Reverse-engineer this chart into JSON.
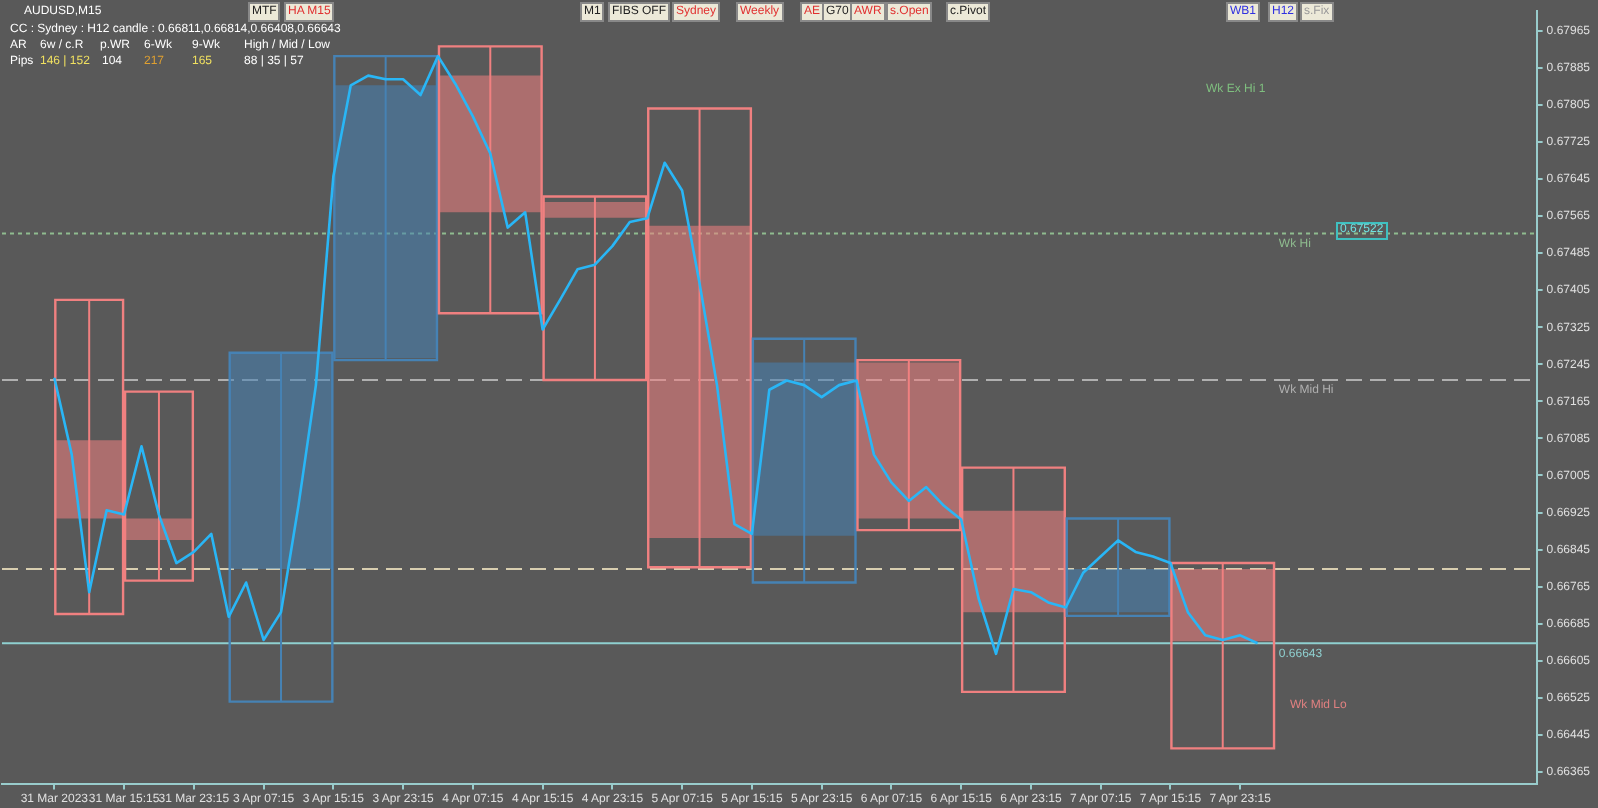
{
  "chart_data": {
    "type": "candlestick",
    "title": "AUDUSD,M15",
    "subtitle": "CC : Sydney : H12 candle : 0.66811,0.66814,0.66408,0.66643",
    "categories": [
      null,
      null,
      null,
      "31 Mar 2023",
      null,
      null,
      null,
      "31 Mar 15:15",
      null,
      null,
      null,
      "31 Mar 23:15",
      null,
      null,
      null,
      "3 Apr 07:15",
      null,
      null,
      null,
      "3 Apr 15:15",
      null,
      null,
      null,
      "3 Apr 23:15",
      null,
      null,
      null,
      "4 Apr 07:15",
      null,
      null,
      null,
      "4 Apr 15:15",
      null,
      null,
      null,
      "4 Apr 23:15",
      null,
      null,
      null,
      "5 Apr 07:15",
      null,
      null,
      null,
      "5 Apr 15:15",
      null,
      null,
      null,
      "5 Apr 23:15",
      null,
      null,
      null,
      "6 Apr 07:15",
      null,
      null,
      null,
      "6 Apr 15:15",
      null,
      null,
      null,
      "6 Apr 23:15",
      null,
      null,
      null,
      "7 Apr 07:15",
      null,
      null,
      null,
      "7 Apr 15:15",
      null,
      null,
      null,
      "7 Apr 23:15",
      null,
      null,
      null,
      null,
      null,
      null,
      null,
      null,
      null,
      null,
      null,
      null,
      null,
      null,
      null,
      null,
      null
    ],
    "ylim": [
      0.6634,
      0.68007
    ],
    "yticks": [
      0.66365,
      0.66445,
      0.66525,
      0.66605,
      0.66685,
      0.66765,
      0.66845,
      0.66925,
      0.67005,
      0.67085,
      0.67165,
      0.67245,
      0.67325,
      0.67405,
      0.67485,
      0.67565,
      0.67645,
      0.67725,
      0.67805,
      0.67885,
      0.67965
    ],
    "grid": false,
    "series": [
      {
        "type": "line",
        "color": "#29b6f6",
        "values": [
          null,
          null,
          null,
          0.67216,
          0.6705,
          0.66753,
          0.6693,
          0.66921,
          0.67068,
          0.6692,
          0.66816,
          0.6684,
          0.66879,
          0.667,
          0.66774,
          0.6665,
          0.6671,
          0.6694,
          0.672,
          0.6765,
          0.67847,
          0.67868,
          0.6786,
          0.6786,
          0.67826,
          0.6791,
          0.6785,
          0.6778,
          0.677,
          0.6754,
          0.67573,
          0.6732,
          0.67384,
          0.6745,
          0.6746,
          0.675,
          0.67552,
          0.6756,
          0.6768,
          0.6762,
          0.6742,
          0.672,
          0.669,
          0.66879,
          0.6719,
          0.6721,
          0.672,
          0.67174,
          0.672,
          0.6721,
          0.6705,
          0.6699,
          0.6695,
          0.6698,
          0.6694,
          0.6691,
          0.6674,
          0.6662,
          0.6676,
          0.66753,
          0.66731,
          0.6672,
          0.66795,
          0.6683,
          0.66865,
          0.6684,
          0.6683,
          0.66816,
          0.6671,
          0.6666,
          0.6665,
          0.6666,
          0.66643,
          null,
          null,
          null,
          null,
          null,
          null,
          null,
          null,
          null,
          null,
          null,
          null,
          null,
          null,
          null,
          null
        ]
      },
      {
        "ohlc": [
          null,
          null,
          null,
          null,
          null,
          [
            0.67081,
            0.67384,
            0.66706,
            0.66912
          ],
          null,
          null,
          null,
          [
            0.66912,
            0.67186,
            0.66778,
            0.66866
          ],
          null,
          null,
          null,
          null,
          null,
          null,
          [
            0.66803,
            0.6727,
            0.66517,
            0.6727
          ],
          null,
          null,
          null,
          null,
          null,
          [
            0.67258,
            0.6791,
            0.67254,
            0.67847
          ],
          null,
          null,
          null,
          null,
          null,
          [
            0.67868,
            0.67931,
            0.67355,
            0.67573
          ],
          null,
          null,
          null,
          null,
          null,
          [
            0.67595,
            0.67607,
            0.67211,
            0.67561
          ],
          null,
          null,
          null,
          null,
          null,
          [
            0.67544,
            0.67797,
            0.66807,
            0.6687
          ],
          null,
          null,
          null,
          null,
          null,
          [
            0.66875,
            0.673,
            0.66774,
            0.67249
          ],
          null,
          null,
          null,
          null,
          null,
          [
            0.67249,
            0.67254,
            0.66887,
            0.66912
          ],
          null,
          null,
          null,
          null,
          null,
          [
            0.66929,
            0.67022,
            0.66538,
            0.6671
          ],
          null,
          null,
          null,
          null,
          null,
          [
            0.6671,
            0.66912,
            0.66702,
            0.66803
          ],
          null,
          null,
          null,
          null,
          null,
          [
            0.66803,
            0.66816,
            0.66416,
            0.66647
          ],
          null,
          null,
          null,
          null,
          null,
          null,
          null,
          null,
          null,
          null,
          null,
          null,
          null,
          null,
          null,
          null,
          null,
          null
        ],
        "colors": [
          null,
          null,
          null,
          null,
          null,
          "#f08080",
          null,
          null,
          null,
          "#f08080",
          null,
          null,
          null,
          null,
          null,
          null,
          "#4682b4",
          null,
          null,
          null,
          null,
          null,
          "#4682b4",
          null,
          null,
          null,
          null,
          null,
          "#f08080",
          null,
          null,
          null,
          null,
          null,
          "#f08080",
          null,
          null,
          null,
          null,
          null,
          "#f08080",
          null,
          null,
          null,
          null,
          null,
          "#4682b4",
          null,
          null,
          null,
          null,
          null,
          "#f08080",
          null,
          null,
          null,
          null,
          null,
          "#f08080",
          null,
          null,
          null,
          null,
          null,
          "#4682b4",
          null,
          null,
          null,
          null,
          null,
          "#f08080",
          null,
          null,
          null,
          null,
          null,
          null,
          null,
          null,
          null,
          null,
          null,
          null,
          null,
          null,
          null,
          null,
          null,
          null
        ]
      }
    ],
    "ref_lines": [
      {
        "axis": "y",
        "value": 0.67527,
        "label": "Wk Hi",
        "color": "#8fbc8f",
        "line_style": "dotted"
      },
      {
        "axis": "y",
        "value": 0.67211,
        "label": "Wk Mid Hi",
        "color": "#b0b0b0",
        "line_style": "dashed"
      },
      {
        "axis": "y",
        "value": 0.66803,
        "label": null,
        "color": "#d8ceb0",
        "line_style": "dashed"
      },
      {
        "axis": "y",
        "value": 0.66643,
        "label": "0.66643",
        "color": "#8fd0d0",
        "line_style": "solid"
      }
    ],
    "annotations": [
      "Wk Ex Hi 1",
      "Wk Mid Lo",
      "0.67522",
      "MTF",
      "HA M15",
      "M1",
      "FIBS OFF",
      "Sydney",
      "Weekly",
      "AE",
      "G70",
      "AWR",
      "s.Open",
      "c.Pivot",
      "WB1",
      "H12",
      "s.Fix",
      "AR",
      "6w / c.R",
      "p.WR",
      "6-Wk",
      "9-Wk",
      "High / Mid / Low",
      "Pips",
      "146 | 152",
      "104",
      "217",
      "165",
      "88 | 35 | 57"
    ]
  }
}
